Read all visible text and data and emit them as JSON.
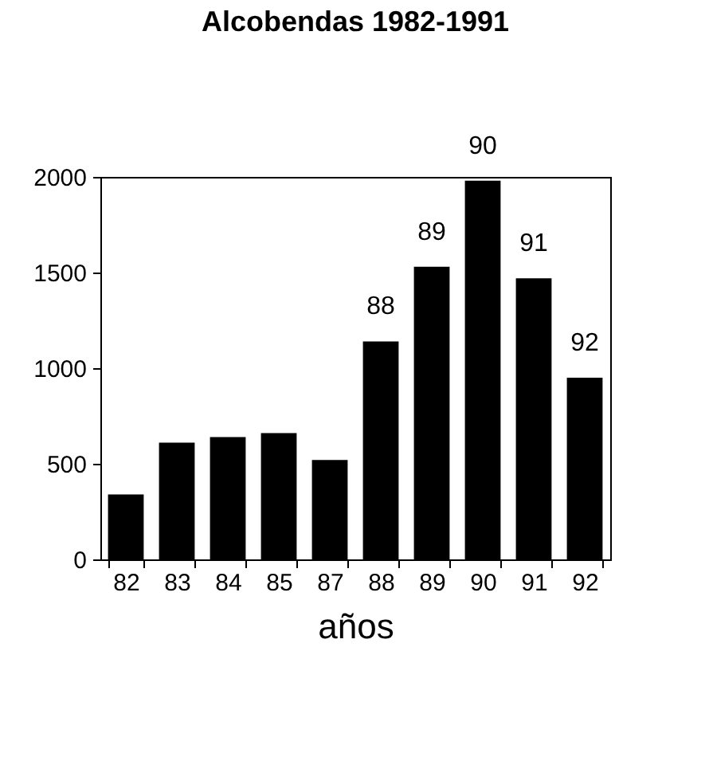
{
  "chart_data": {
    "type": "bar",
    "title": "Alcobendas 1982-1991",
    "xlabel": "años",
    "categories": [
      "82",
      "83",
      "84",
      "85",
      "87",
      "88",
      "89",
      "90",
      "91",
      "92"
    ],
    "values": [
      340,
      610,
      640,
      660,
      520,
      1140,
      1530,
      1980,
      1470,
      950
    ],
    "color": "#000000",
    "ylim": [
      0,
      2000
    ],
    "yticks": [
      0,
      500,
      1000,
      1500,
      2000
    ],
    "grid": false,
    "annotations": [
      {
        "text": "88",
        "x": "88",
        "y": 1140
      },
      {
        "text": "89",
        "x": "89",
        "y": 1530
      },
      {
        "text": "90",
        "x": "90",
        "y": 1980
      },
      {
        "text": "91",
        "x": "91",
        "y": 1470
      },
      {
        "text": "92",
        "x": "92",
        "y": 950
      }
    ]
  }
}
